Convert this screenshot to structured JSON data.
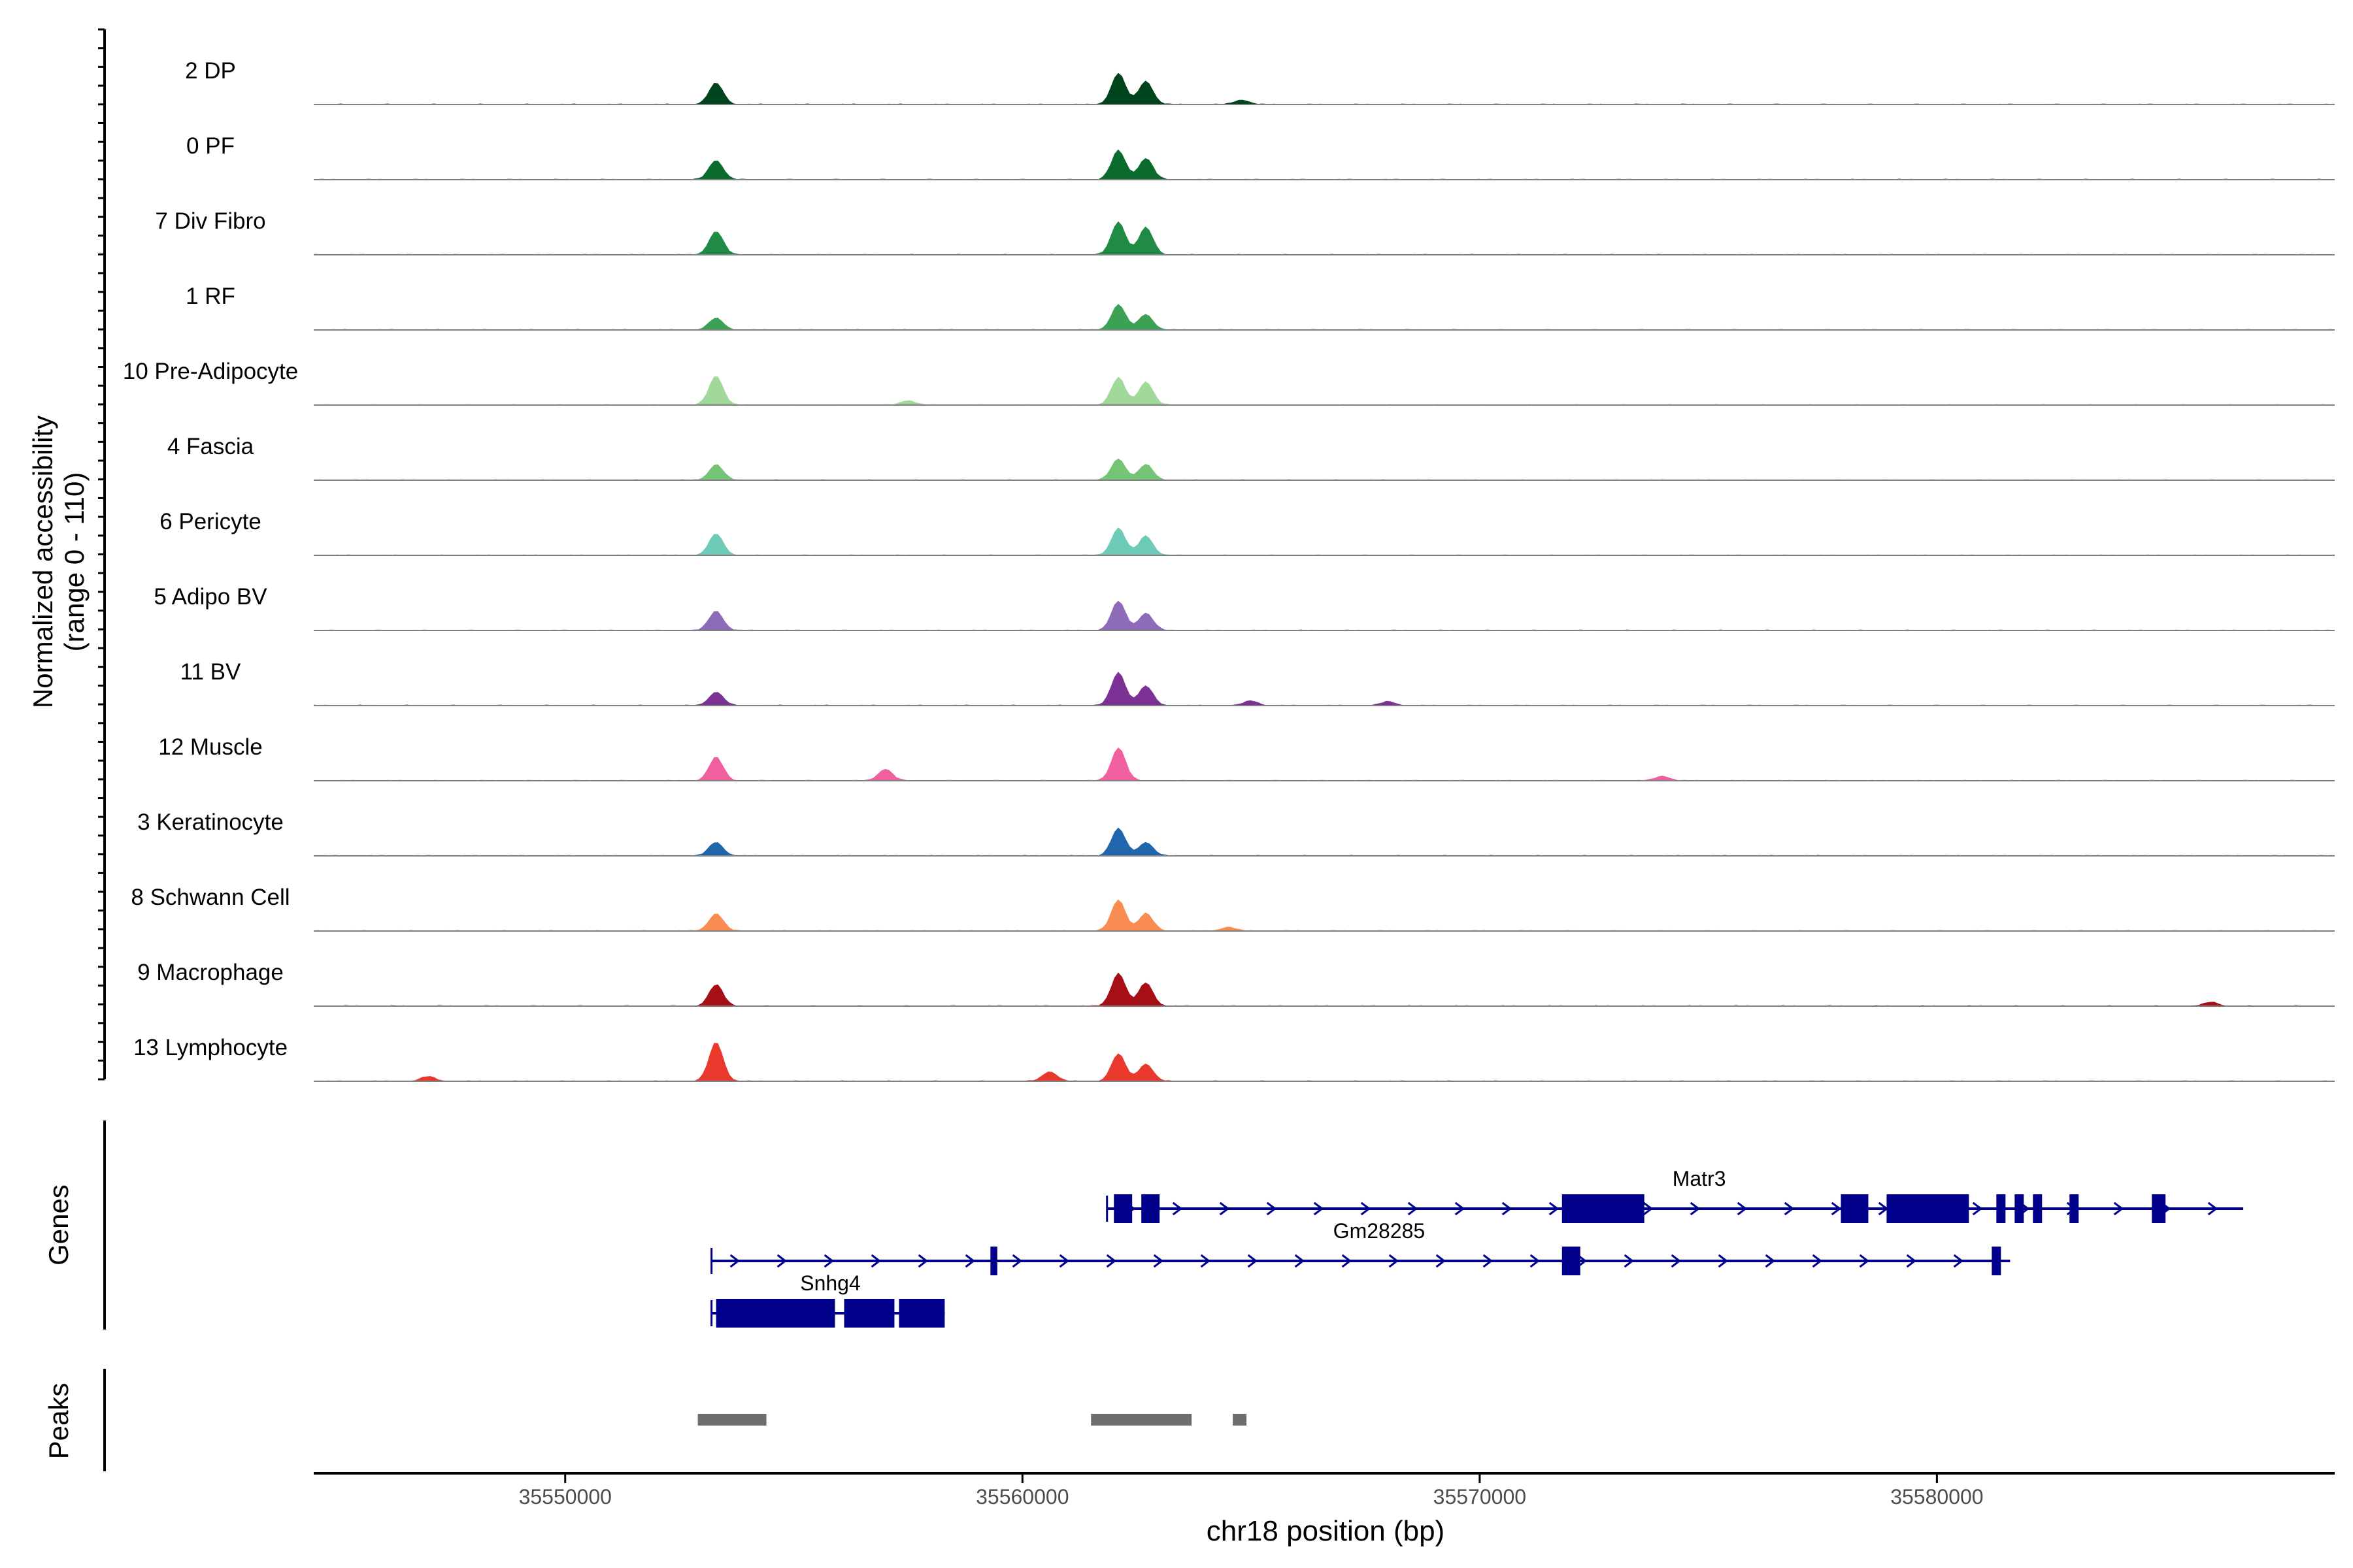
{
  "chart_data": {
    "type": "area",
    "title": "",
    "xlabel": "chr18 position (bp)",
    "coverage_axis_label": [
      "Normalized accessibility",
      "(range 0 - 110)"
    ],
    "coverage_range": [
      0,
      110
    ],
    "xlim": [
      35544500,
      35588700
    ],
    "x_ticks": [
      35550000,
      35560000,
      35570000,
      35580000
    ],
    "x_tick_labels": [
      "35550000",
      "35560000",
      "35570000",
      "35580000"
    ],
    "track_labels": {
      "genes": "Genes",
      "peaks": "Peaks"
    },
    "series": [
      {
        "name": "2 DP",
        "color": "#00441B",
        "peaks": [
          [
            35553300,
            0.55
          ],
          [
            35562100,
            0.8
          ],
          [
            35562700,
            0.6
          ],
          [
            35564800,
            0.12
          ]
        ]
      },
      {
        "name": "0 PF",
        "color": "#0B6B2F",
        "peaks": [
          [
            35553300,
            0.5
          ],
          [
            35562100,
            0.75
          ],
          [
            35562700,
            0.55
          ]
        ]
      },
      {
        "name": "7 Div Fibro",
        "color": "#1F8B44",
        "peaks": [
          [
            35553300,
            0.6
          ],
          [
            35562100,
            0.85
          ],
          [
            35562700,
            0.7
          ]
        ]
      },
      {
        "name": "1 RF",
        "color": "#3CA055",
        "peaks": [
          [
            35553300,
            0.3
          ],
          [
            35562100,
            0.65
          ],
          [
            35562700,
            0.4
          ]
        ]
      },
      {
        "name": "10 Pre-Adipocyte",
        "color": "#A1D99B",
        "peaks": [
          [
            35553300,
            0.75
          ],
          [
            35562100,
            0.7
          ],
          [
            35562700,
            0.6
          ],
          [
            35557500,
            0.12
          ]
        ]
      },
      {
        "name": "4 Fascia",
        "color": "#74C476",
        "peaks": [
          [
            35553300,
            0.4
          ],
          [
            35562100,
            0.55
          ],
          [
            35562700,
            0.4
          ]
        ]
      },
      {
        "name": "6 Pericyte",
        "color": "#6ECBB8",
        "peaks": [
          [
            35553300,
            0.55
          ],
          [
            35562100,
            0.7
          ],
          [
            35562700,
            0.5
          ]
        ]
      },
      {
        "name": "5 Adipo BV",
        "color": "#8E6BB8",
        "peaks": [
          [
            35553300,
            0.5
          ],
          [
            35562100,
            0.75
          ],
          [
            35562700,
            0.45
          ]
        ]
      },
      {
        "name": "11 BV",
        "color": "#7B3294",
        "peaks": [
          [
            35553300,
            0.35
          ],
          [
            35562100,
            0.85
          ],
          [
            35562700,
            0.5
          ],
          [
            35565000,
            0.12
          ],
          [
            35568000,
            0.1
          ]
        ]
      },
      {
        "name": "12 Muscle",
        "color": "#F0609E",
        "peaks": [
          [
            35553300,
            0.6
          ],
          [
            35562100,
            0.85
          ],
          [
            35557000,
            0.3
          ],
          [
            35574000,
            0.12
          ]
        ]
      },
      {
        "name": "3 Keratinocyte",
        "color": "#2166AC",
        "peaks": [
          [
            35553300,
            0.35
          ],
          [
            35562100,
            0.7
          ],
          [
            35562700,
            0.35
          ]
        ]
      },
      {
        "name": "8 Schwann Cell",
        "color": "#F88C51",
        "peaks": [
          [
            35553300,
            0.45
          ],
          [
            35562100,
            0.8
          ],
          [
            35562700,
            0.45
          ],
          [
            35564500,
            0.1
          ]
        ]
      },
      {
        "name": "9 Macrophage",
        "color": "#A50F15",
        "peaks": [
          [
            35553300,
            0.55
          ],
          [
            35562100,
            0.85
          ],
          [
            35562700,
            0.6
          ],
          [
            35586000,
            0.1
          ]
        ]
      },
      {
        "name": "13 Lymphocyte",
        "color": "#E8392C",
        "peaks": [
          [
            35553300,
            1.0
          ],
          [
            35562100,
            0.7
          ],
          [
            35562700,
            0.45
          ],
          [
            35560600,
            0.25
          ],
          [
            35547000,
            0.12
          ]
        ]
      }
    ],
    "genes": [
      {
        "name": "Matr3",
        "start": 35561850,
        "end": 35586700,
        "exons": [
          [
            35562000,
            35562400
          ],
          [
            35562600,
            35563000
          ],
          [
            35571800,
            35573600
          ],
          [
            35577900,
            35578500
          ],
          [
            35578900,
            35580700
          ],
          [
            35581300,
            35581500
          ],
          [
            35581700,
            35581900
          ],
          [
            35582100,
            35582300
          ],
          [
            35582900,
            35583100
          ],
          [
            35584700,
            35585000
          ]
        ]
      },
      {
        "name": "Gm28285",
        "start": 35553200,
        "end": 35581600,
        "exons": [
          [
            35559300,
            35559450
          ],
          [
            35571800,
            35572200
          ],
          [
            35581200,
            35581400
          ]
        ]
      },
      {
        "name": "Snhg4",
        "start": 35553200,
        "end": 35558300,
        "exons": [
          [
            35553300,
            35555900
          ],
          [
            35556100,
            35557200
          ],
          [
            35557300,
            35558300
          ]
        ]
      }
    ],
    "peaks": [
      [
        35552900,
        35554400
      ],
      [
        35561500,
        35563700
      ],
      [
        35564600,
        35564900
      ]
    ],
    "colors": {
      "gene": "#00008B",
      "peak": "#6E6E6E",
      "axis": "#000000",
      "baseline": "#808080",
      "tick_label": "#4D4D4D"
    }
  }
}
